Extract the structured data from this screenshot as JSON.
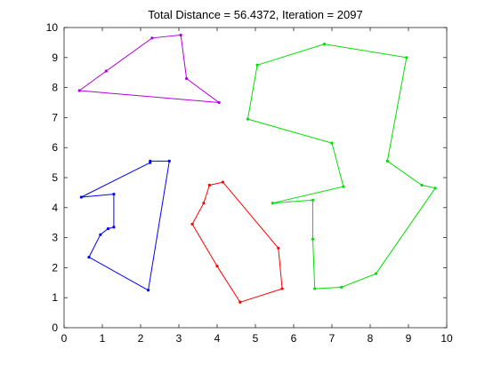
{
  "chart_data": {
    "type": "line",
    "title": "Total Distance = 56.4372, Iteration = 2097",
    "xlabel": "",
    "ylabel": "",
    "xlim": [
      0,
      10
    ],
    "ylim": [
      0,
      10
    ],
    "xticks": [
      "0",
      "1",
      "2",
      "3",
      "4",
      "5",
      "6",
      "7",
      "8",
      "9",
      "10"
    ],
    "yticks": [
      "0",
      "1",
      "2",
      "3",
      "4",
      "5",
      "6",
      "7",
      "8",
      "9",
      "10"
    ],
    "grid": false,
    "legend": "none",
    "series": [
      {
        "color": "#b000d8",
        "closed": true,
        "points": [
          [
            0.4,
            7.9
          ],
          [
            1.1,
            8.55
          ],
          [
            2.3,
            9.65
          ],
          [
            3.05,
            9.75
          ],
          [
            3.2,
            8.3
          ],
          [
            4.05,
            7.5
          ]
        ]
      },
      {
        "color": "#00e000",
        "closed": true,
        "points": [
          [
            5.05,
            8.75
          ],
          [
            6.8,
            9.45
          ],
          [
            8.95,
            9.0
          ],
          [
            8.45,
            5.55
          ],
          [
            9.35,
            4.75
          ],
          [
            9.7,
            4.65
          ],
          [
            8.15,
            1.8
          ],
          [
            7.25,
            1.35
          ],
          [
            6.55,
            1.3
          ],
          [
            6.5,
            2.95
          ],
          [
            6.5,
            4.25
          ],
          [
            5.45,
            4.15
          ],
          [
            7.3,
            4.7
          ],
          [
            7.0,
            6.15
          ],
          [
            4.8,
            6.95
          ]
        ]
      },
      {
        "color": "#0000ff",
        "closed": true,
        "points": [
          [
            2.25,
            5.55
          ],
          [
            2.75,
            5.55
          ],
          [
            2.2,
            1.25
          ],
          [
            0.65,
            2.35
          ],
          [
            0.95,
            3.1
          ],
          [
            1.15,
            3.3
          ],
          [
            1.3,
            3.35
          ],
          [
            1.3,
            4.45
          ],
          [
            0.45,
            4.35
          ],
          [
            2.25,
            5.5
          ]
        ]
      },
      {
        "color": "#ff0000",
        "closed": true,
        "points": [
          [
            4.15,
            4.85
          ],
          [
            3.8,
            4.75
          ],
          [
            3.65,
            4.15
          ],
          [
            3.35,
            3.45
          ],
          [
            4.0,
            2.05
          ],
          [
            4.6,
            0.85
          ],
          [
            5.7,
            1.3
          ],
          [
            5.6,
            2.65
          ]
        ]
      }
    ]
  }
}
